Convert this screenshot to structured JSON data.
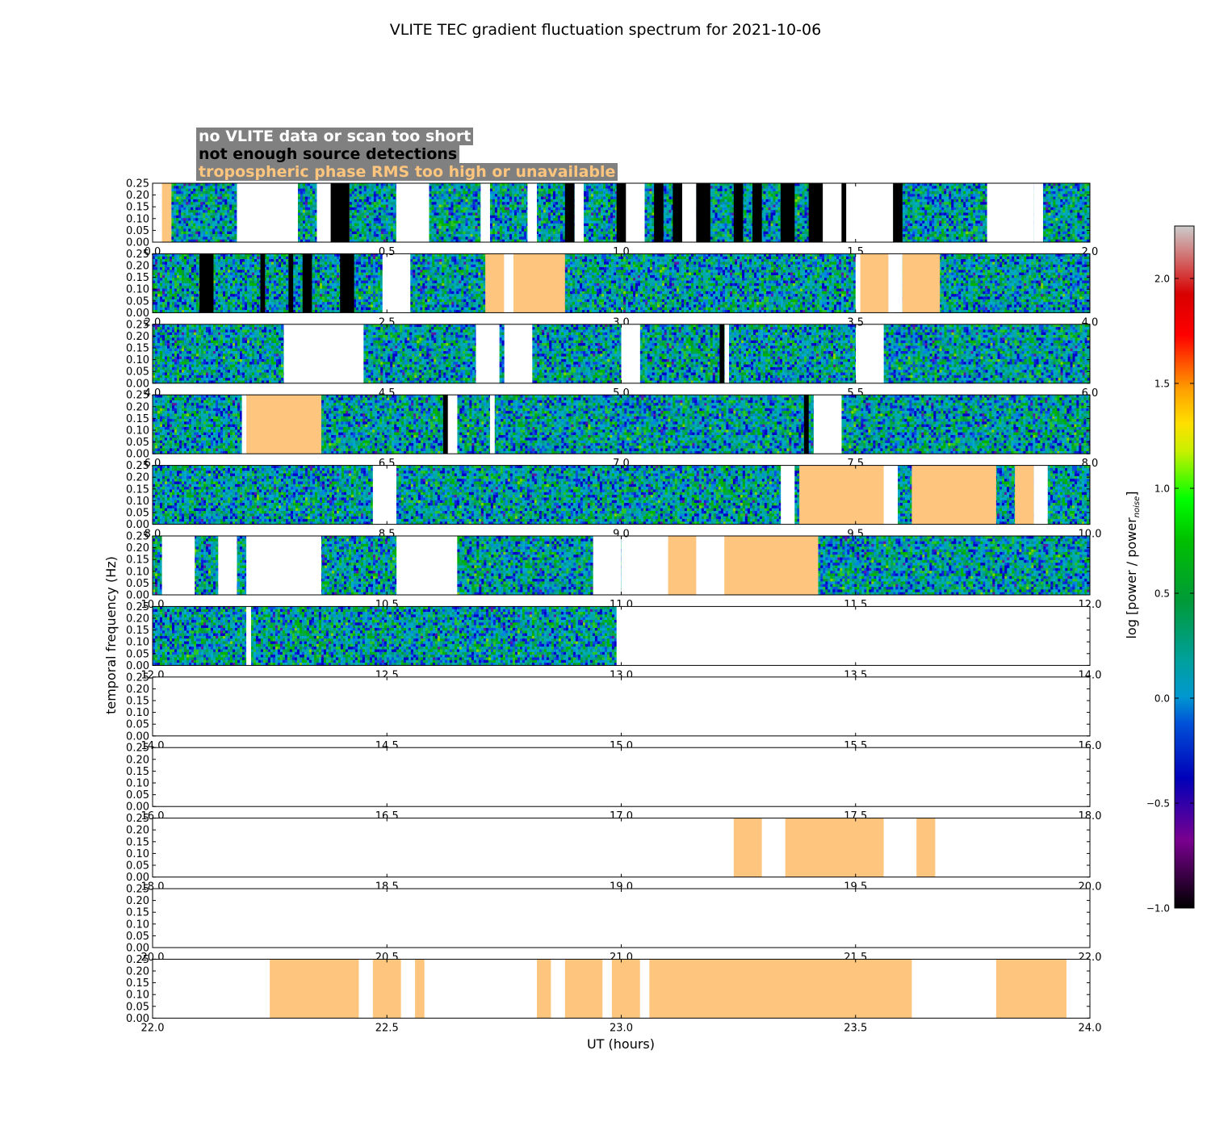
{
  "chart_data": {
    "type": "heatmap",
    "title": "VLITE TEC gradient fluctuation spectrum for 2021-10-06",
    "xlabel": "UT (hours)",
    "ylabel": "temporal frequency (Hz)",
    "ylim": [
      0.0,
      0.25
    ],
    "yticks": [
      "0.00",
      "0.05",
      "0.10",
      "0.15",
      "0.20",
      "0.25"
    ],
    "panel_hours": 2,
    "panels": [
      {
        "start": 0.0,
        "xticks": [
          "0.0",
          "0.5",
          "1.0",
          "1.5",
          "2.0"
        ]
      },
      {
        "start": 2.0,
        "xticks": [
          "2.0",
          "2.5",
          "3.0",
          "3.5",
          "4.0"
        ]
      },
      {
        "start": 4.0,
        "xticks": [
          "4.0",
          "4.5",
          "5.0",
          "5.5",
          "6.0"
        ]
      },
      {
        "start": 6.0,
        "xticks": [
          "6.0",
          "6.5",
          "7.0",
          "7.5",
          "8.0"
        ]
      },
      {
        "start": 8.0,
        "xticks": [
          "8.0",
          "8.5",
          "9.0",
          "9.5",
          "10.0"
        ]
      },
      {
        "start": 10.0,
        "xticks": [
          "10.0",
          "10.5",
          "11.0",
          "11.5",
          "12.0"
        ]
      },
      {
        "start": 12.0,
        "xticks": [
          "12.0",
          "12.5",
          "13.0",
          "13.5",
          "14.0"
        ]
      },
      {
        "start": 14.0,
        "xticks": [
          "14.0",
          "14.5",
          "15.0",
          "15.5",
          "16.0"
        ]
      },
      {
        "start": 16.0,
        "xticks": [
          "16.0",
          "16.5",
          "17.0",
          "17.5",
          "18.0"
        ]
      },
      {
        "start": 18.0,
        "xticks": [
          "18.0",
          "18.5",
          "19.0",
          "19.5",
          "20.0"
        ]
      },
      {
        "start": 20.0,
        "xticks": [
          "20.0",
          "20.5",
          "21.0",
          "21.5",
          "22.0"
        ]
      },
      {
        "start": 22.0,
        "xticks": [
          "22.0",
          "22.5",
          "23.0",
          "23.5",
          "24.0"
        ]
      }
    ],
    "legend": [
      {
        "label": "no VLITE data or scan too short",
        "color": "#ffffff"
      },
      {
        "label": "not enough source detections",
        "color": "#000000"
      },
      {
        "label": "tropospheric phase RMS too high or unavailable",
        "color": "#fdc57d"
      }
    ],
    "colorbar": {
      "label": "log [power / power",
      "label_sub": "noise",
      "label_end": "]",
      "range": [
        -1.0,
        2.25
      ],
      "ticks": [
        "−1.0",
        "−0.5",
        "0.0",
        "0.5",
        "1.0",
        "1.5",
        "2.0"
      ],
      "tick_values": [
        -1.0,
        -0.5,
        0.0,
        0.5,
        1.0,
        1.5,
        2.0
      ]
    },
    "data_intervals": [
      [
        0.04,
        0.18
      ],
      [
        0.31,
        0.35
      ],
      [
        0.42,
        0.52
      ],
      [
        0.59,
        0.7
      ],
      [
        0.72,
        0.9
      ],
      [
        0.92,
        1.0
      ],
      [
        1.05,
        1.42
      ],
      [
        1.58,
        1.78
      ],
      [
        1.88,
        2.0
      ],
      [
        2.0,
        2.49
      ],
      [
        2.55,
        2.71
      ],
      [
        2.87,
        3.5
      ],
      [
        3.58,
        4.0
      ],
      [
        4.0,
        4.28
      ],
      [
        4.45,
        4.69
      ],
      [
        4.74,
        4.75
      ],
      [
        4.81,
        5.0
      ],
      [
        5.04,
        5.22
      ],
      [
        5.23,
        5.5
      ],
      [
        5.56,
        6.0
      ],
      [
        6.0,
        6.19
      ],
      [
        6.35,
        6.62
      ],
      [
        6.65,
        7.41
      ],
      [
        7.47,
        8.0
      ],
      [
        8.0,
        8.47
      ],
      [
        8.52,
        9.34
      ],
      [
        9.37,
        9.55
      ],
      [
        9.59,
        10.0
      ],
      [
        10.0,
        10.52
      ],
      [
        10.65,
        11.0
      ],
      [
        11.42,
        12.0
      ],
      [
        12.0,
        12.2
      ],
      [
        12.21,
        12.99
      ]
    ],
    "high_power_patches": [
      {
        "t0": 0.31,
        "t1": 0.38,
        "level": "high"
      },
      {
        "t0": 4.74,
        "t1": 4.76,
        "level": "medium"
      },
      {
        "t0": 10.98,
        "t1": 11.0,
        "level": "high"
      }
    ],
    "flag_no_data": [
      [
        0.18,
        0.31
      ],
      [
        0.52,
        0.59
      ],
      [
        0.7,
        0.71
      ],
      [
        0.8,
        0.82
      ],
      [
        1.13,
        1.16
      ],
      [
        1.43,
        1.44
      ],
      [
        1.56,
        1.58
      ],
      [
        1.88,
        1.9
      ],
      [
        3.5,
        3.51
      ],
      [
        3.57,
        3.6
      ],
      [
        4.28,
        4.45
      ],
      [
        4.69,
        4.74
      ],
      [
        4.77,
        4.81
      ],
      [
        5.0,
        5.04
      ],
      [
        5.53,
        5.56
      ],
      [
        6.64,
        6.65
      ],
      [
        6.72,
        6.73
      ],
      [
        7.43,
        7.47
      ],
      [
        8.47,
        8.52
      ],
      [
        9.53,
        9.59
      ],
      [
        9.88,
        9.91
      ],
      [
        10.02,
        10.09
      ],
      [
        10.14,
        10.18
      ],
      [
        10.2,
        10.36
      ],
      [
        10.94,
        11.0
      ],
      [
        12.2,
        12.21
      ],
      [
        12.99,
        14.0
      ],
      [
        14.0,
        16.0
      ],
      [
        16.0,
        18.0
      ],
      [
        18.0,
        19.24
      ],
      [
        19.3,
        19.35
      ],
      [
        19.56,
        19.63
      ],
      [
        19.67,
        20.0
      ],
      [
        20.0,
        22.0
      ],
      [
        22.0,
        22.25
      ],
      [
        22.44,
        22.47
      ],
      [
        22.53,
        22.56
      ],
      [
        22.58,
        22.82
      ],
      [
        22.85,
        22.88
      ],
      [
        22.96,
        22.98
      ],
      [
        23.04,
        23.06
      ],
      [
        23.62,
        23.8
      ],
      [
        23.95,
        24.0
      ]
    ],
    "flag_detections": [
      [
        0.38,
        0.42
      ],
      [
        0.88,
        0.9
      ],
      [
        0.99,
        1.01
      ],
      [
        1.07,
        1.09
      ],
      [
        1.11,
        1.13
      ],
      [
        1.16,
        1.19
      ],
      [
        1.24,
        1.26
      ],
      [
        1.28,
        1.3
      ],
      [
        1.34,
        1.37
      ],
      [
        1.4,
        1.43
      ],
      [
        1.47,
        1.48
      ],
      [
        1.58,
        1.6
      ],
      [
        2.1,
        2.13
      ],
      [
        2.23,
        2.24
      ],
      [
        2.29,
        2.3
      ],
      [
        2.32,
        2.34
      ],
      [
        2.4,
        2.43
      ],
      [
        5.21,
        5.22
      ],
      [
        6.62,
        6.63
      ],
      [
        7.39,
        7.4
      ]
    ],
    "flag_tropo": [
      [
        0.02,
        0.04
      ],
      [
        2.71,
        2.75
      ],
      [
        2.77,
        2.88
      ],
      [
        3.51,
        3.57
      ],
      [
        3.6,
        3.68
      ],
      [
        6.2,
        6.36
      ],
      [
        9.38,
        9.56
      ],
      [
        9.62,
        9.8
      ],
      [
        9.84,
        9.88
      ],
      [
        11.1,
        11.16
      ],
      [
        11.22,
        11.42
      ],
      [
        19.24,
        19.3
      ],
      [
        19.35,
        19.56
      ],
      [
        19.63,
        19.67
      ],
      [
        22.25,
        22.44
      ],
      [
        22.47,
        22.53
      ],
      [
        22.56,
        22.58
      ],
      [
        22.82,
        22.85
      ],
      [
        22.88,
        22.96
      ],
      [
        22.98,
        23.04
      ],
      [
        23.06,
        23.62
      ],
      [
        23.8,
        23.95
      ]
    ]
  }
}
